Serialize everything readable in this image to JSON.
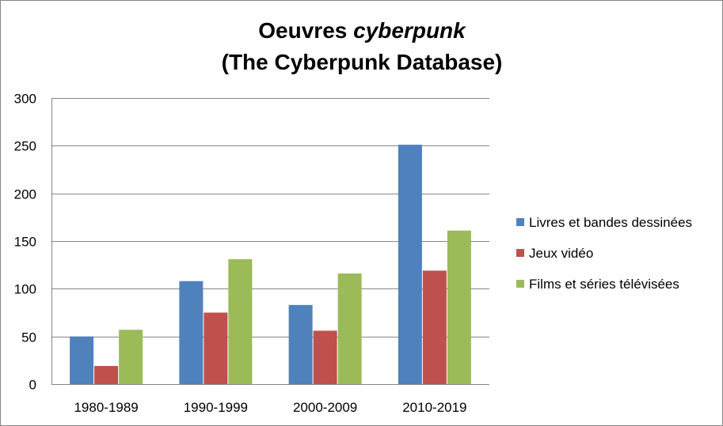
{
  "chart_data": {
    "type": "bar",
    "title": {
      "line1_prefix": "Oeuvres ",
      "line1_italic": "cyberpunk",
      "line2": "(The Cyberpunk Database)"
    },
    "categories": [
      "1980-1989",
      "1990-1999",
      "2000-2009",
      "2010-2019"
    ],
    "series": [
      {
        "name": "Livres et bandes dessinées",
        "color": "#4F81BD",
        "values": [
          50,
          108,
          83,
          251
        ]
      },
      {
        "name": "Jeux vidéo",
        "color": "#C0504D",
        "values": [
          19,
          75,
          56,
          119
        ]
      },
      {
        "name": "Films et séries télévisées",
        "color": "#9BBB59",
        "values": [
          57,
          131,
          116,
          161
        ]
      }
    ],
    "ylim": [
      0,
      300
    ],
    "yticks": [
      0,
      50,
      100,
      150,
      200,
      250,
      300
    ],
    "grid": true,
    "legend_position": "right"
  }
}
